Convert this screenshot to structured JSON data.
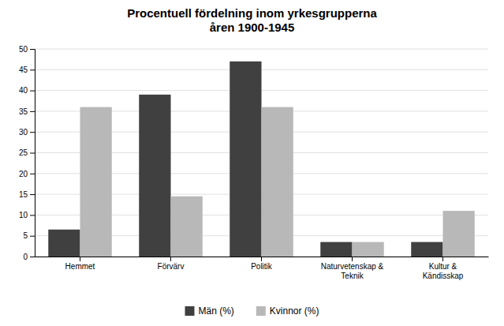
{
  "chart_data": {
    "type": "bar",
    "title": "Procentuell fördelning inom yrkesgrupperna\nåren 1900-1945",
    "categories": [
      "Hemmet",
      "Förvärv",
      "Politik",
      "Naturvetenskap &\nTeknik",
      "Kultur &\nKändisskap"
    ],
    "series": [
      {
        "name": "Män (%)",
        "color": "#404040",
        "values": [
          6.5,
          39,
          47,
          3.5,
          3.5
        ]
      },
      {
        "name": "Kvinnor (%)",
        "color": "#b8b8b8",
        "values": [
          36,
          14.5,
          36,
          3.5,
          11
        ]
      }
    ],
    "ylim": [
      0,
      50
    ],
    "yticks": [
      0,
      5,
      10,
      15,
      20,
      25,
      30,
      35,
      40,
      45,
      50
    ],
    "grid": true,
    "legend": "bottom"
  }
}
